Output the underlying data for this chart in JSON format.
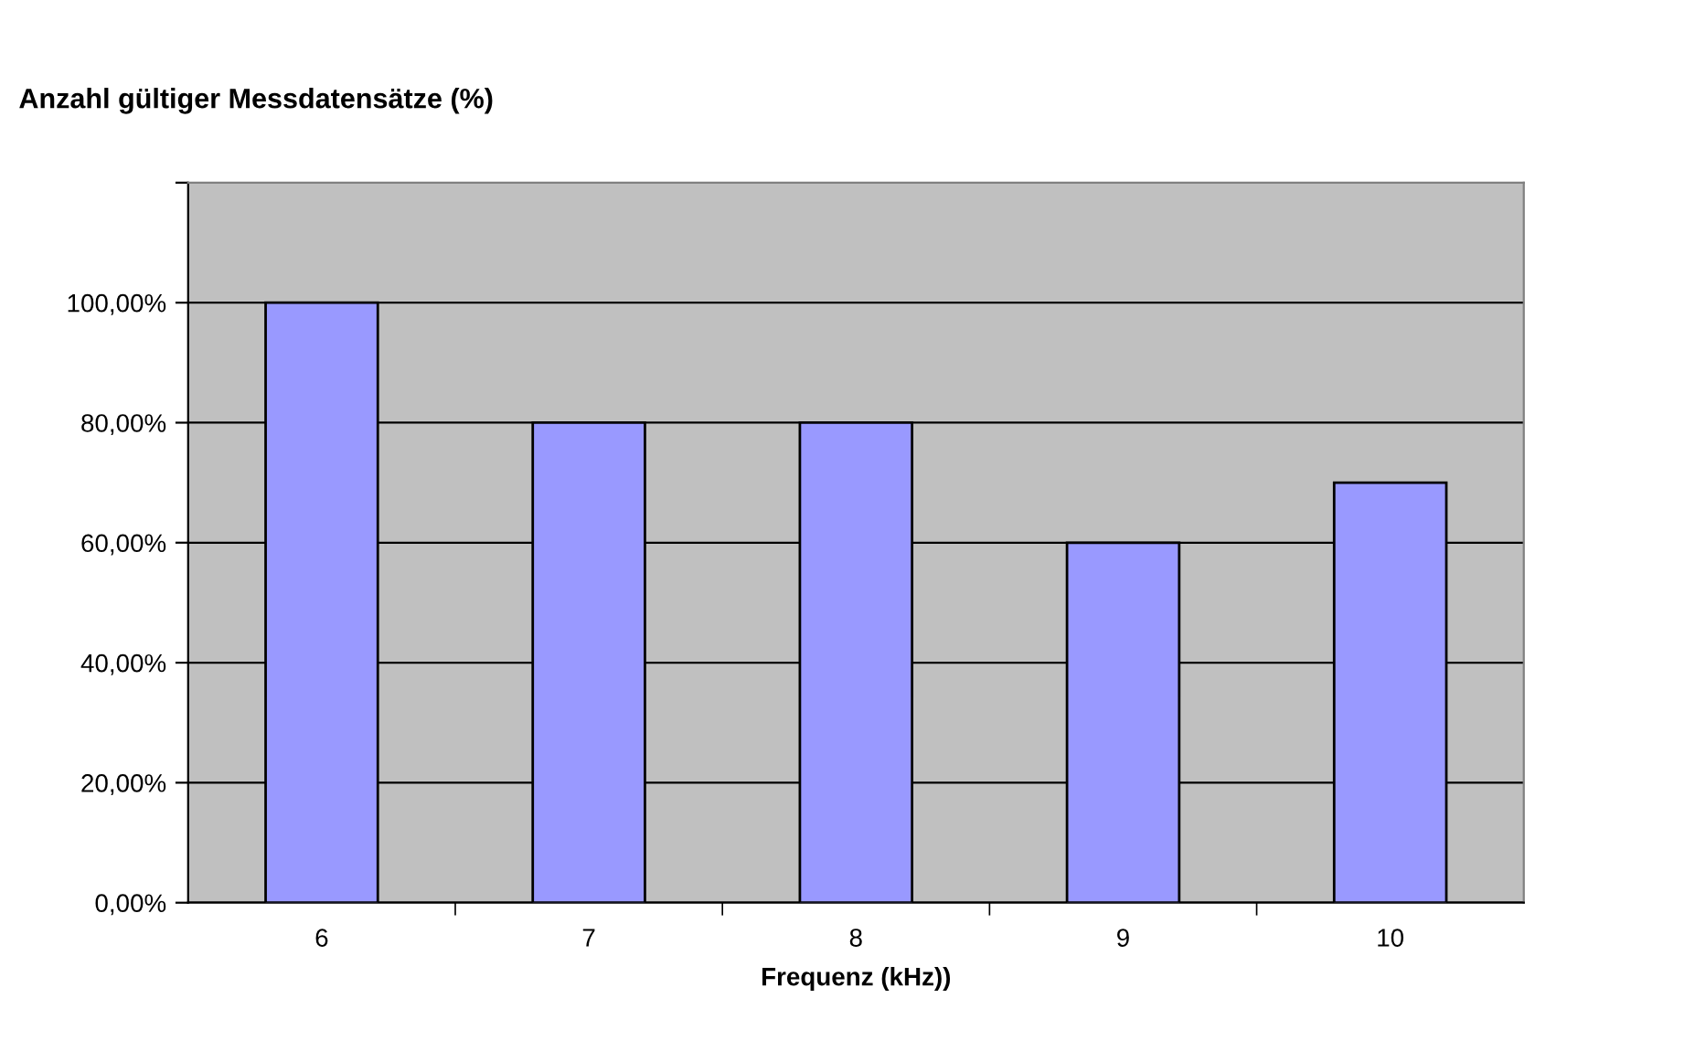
{
  "chart_data": {
    "type": "bar",
    "title": "Anzahl gültiger Messdatensätze (%)",
    "xlabel": "Frequenz (kHz))",
    "categories": [
      "6",
      "7",
      "8",
      "9",
      "10"
    ],
    "values": [
      100,
      80,
      80,
      60,
      70
    ],
    "color": "#9999ff",
    "ylim": [
      0,
      120
    ],
    "yticks": [
      {
        "value": 0,
        "label": "0,00%"
      },
      {
        "value": 20,
        "label": "20,00%"
      },
      {
        "value": 40,
        "label": "40,00%"
      },
      {
        "value": 60,
        "label": "60,00%"
      },
      {
        "value": 80,
        "label": "80,00%"
      },
      {
        "value": 100,
        "label": "100,00%"
      },
      {
        "value": 120,
        "label": null
      }
    ],
    "grid": "y",
    "legend": false
  }
}
